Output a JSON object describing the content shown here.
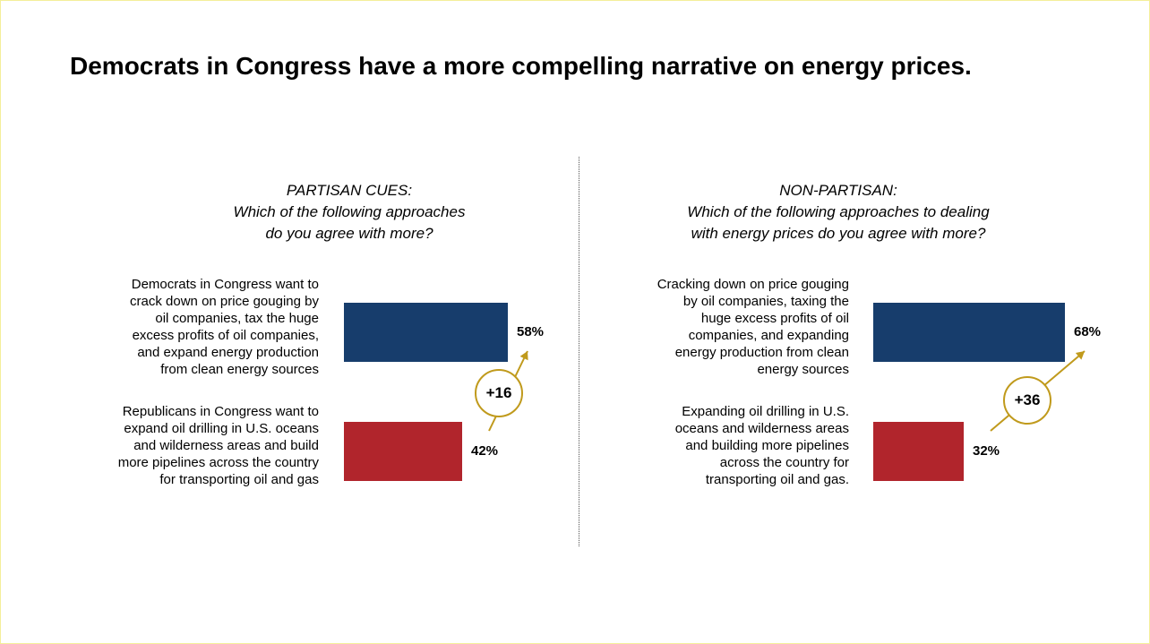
{
  "title": "Democrats in Congress have a more compelling narrative on energy prices.",
  "colors": {
    "dem": "#173d6c",
    "rep": "#b1252c",
    "accent": "#c09a1c"
  },
  "chart_data": [
    {
      "type": "bar",
      "orientation": "horizontal",
      "header": [
        "PARTISAN CUES:",
        "Which of the following approaches",
        "do you agree with more?"
      ],
      "categories": [
        "Democrats in Congress want to crack down on price gouging by oil companies, tax the huge excess profits of oil companies, and expand energy production from clean energy sources",
        "Republicans in Congress want to expand oil drilling in U.S. oceans and wilderness areas and build more pipelines across the country for transporting oil and gas"
      ],
      "label_lines": [
        [
          "Democrats in Congress want to",
          "crack down on price gouging by",
          "oil companies, tax the huge",
          "excess profits of oil companies,",
          "and expand energy production",
          "from clean energy sources"
        ],
        [
          "Republicans in Congress want to",
          "expand oil drilling in U.S. oceans",
          "and wilderness areas and build",
          "more pipelines across the country",
          "for transporting oil and gas"
        ]
      ],
      "values": [
        58,
        42
      ],
      "value_labels": [
        "58%",
        "42%"
      ],
      "unit": "%",
      "difference": "+16"
    },
    {
      "type": "bar",
      "orientation": "horizontal",
      "header": [
        "NON-PARTISAN:",
        "Which of the following approaches to dealing",
        "with energy prices do you agree with more?"
      ],
      "categories": [
        "Cracking down on price gouging by oil companies, taxing the huge excess profits of oil companies, and expanding energy production from clean energy sources",
        "Expanding oil drilling in U.S. oceans and wilderness areas and building more pipelines across the country for transporting oil and gas."
      ],
      "label_lines": [
        [
          "Cracking down on price gouging",
          "by oil companies, taxing the",
          "huge excess profits of oil",
          "companies, and expanding",
          "energy production from clean",
          "energy sources"
        ],
        [
          "Expanding oil drilling in U.S.",
          "oceans and wilderness areas",
          "and building more pipelines",
          "across the country for",
          "transporting oil and gas."
        ]
      ],
      "values": [
        68,
        32
      ],
      "value_labels": [
        "68%",
        "32%"
      ],
      "unit": "%",
      "difference": "+36"
    }
  ]
}
